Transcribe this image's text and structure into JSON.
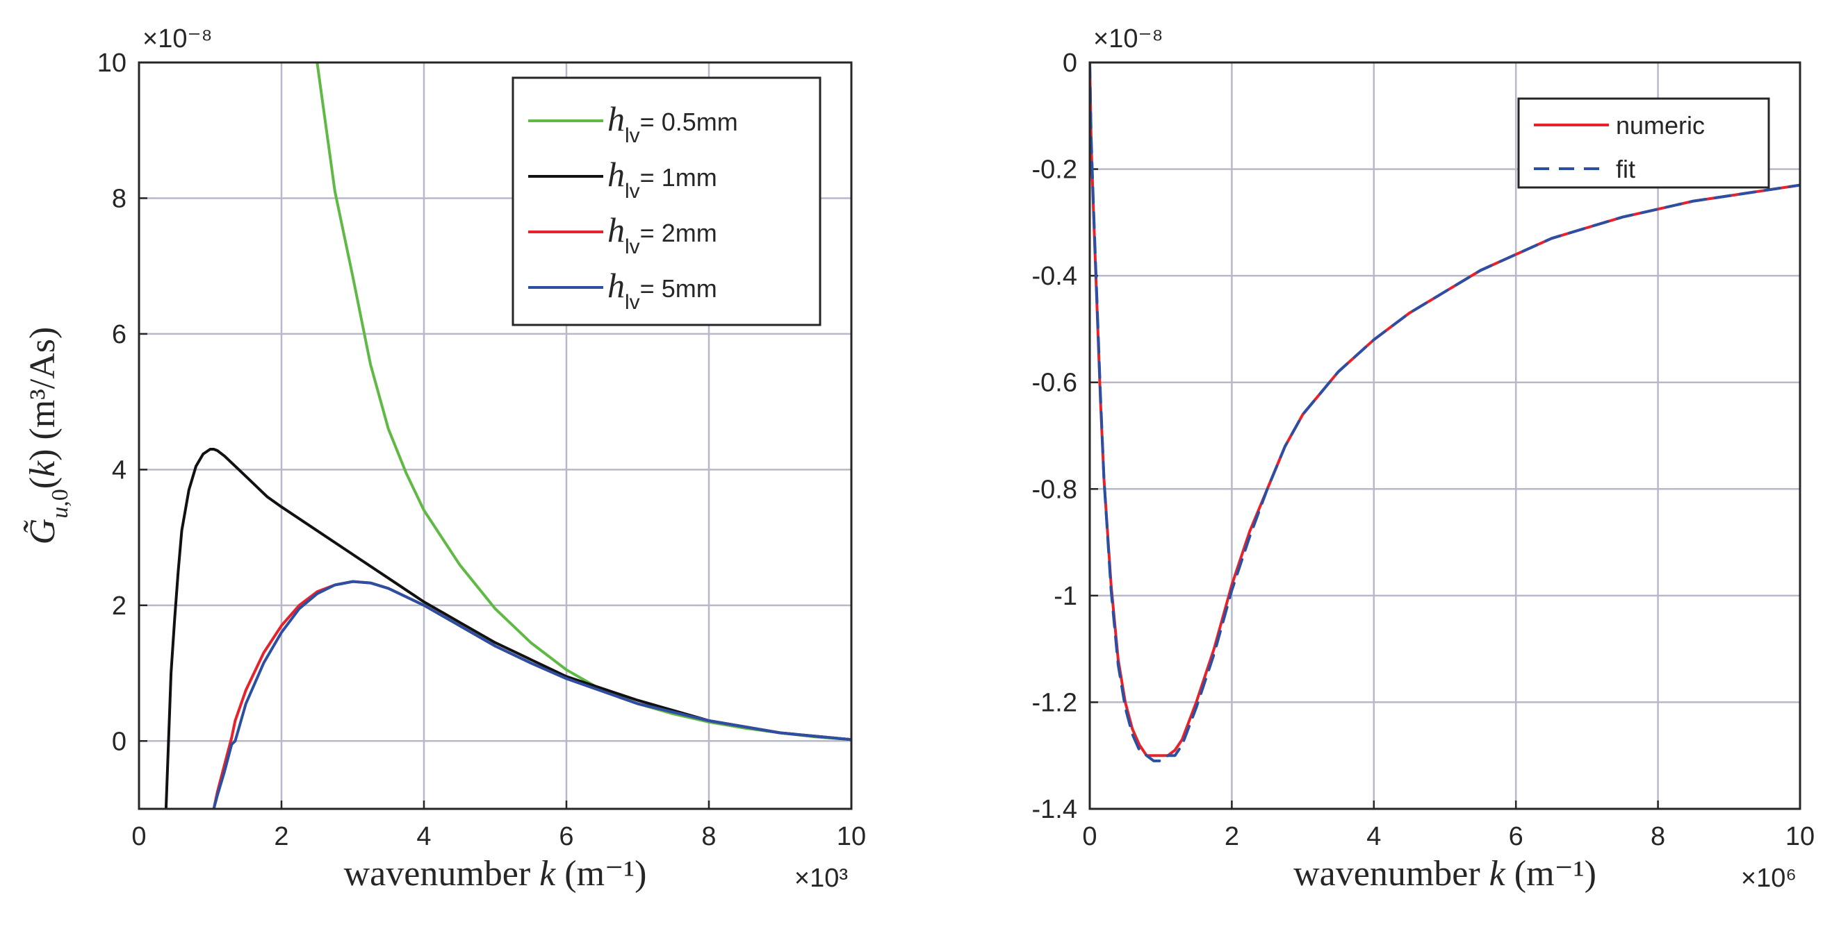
{
  "chart_data": [
    {
      "type": "line",
      "xlabel": "wavenumber k (m⁻¹)",
      "xlabel_prefix": "wavenumber ",
      "xlabel_var": "k",
      "xlabel_unit": "(m⁻¹)",
      "ylabel": "G̃u,0(k) (m³/As)",
      "x_exponent": "×10³",
      "y_exponent": "×10⁻⁸",
      "xlim": [
        0,
        10
      ],
      "ylim": [
        -1,
        10
      ],
      "xticks": [
        "0",
        "2",
        "4",
        "6",
        "8",
        "10"
      ],
      "yticks": [
        "0",
        "2",
        "4",
        "6",
        "8",
        "10"
      ],
      "grid": true,
      "legend_position": "top-right",
      "series": [
        {
          "name": "h_lv = 0.5mm",
          "label_sym": "h",
          "label_sub": "lv",
          "label_rest": "= 0.5mm",
          "color": "#5fb944",
          "dash": "",
          "x": [
            2.5,
            2.75,
            3.0,
            3.25,
            3.5,
            3.75,
            4.0,
            4.5,
            5.0,
            5.5,
            6.0,
            6.5,
            7.0,
            7.5,
            8.0,
            8.5,
            9.0,
            9.5,
            10.0
          ],
          "y": [
            10.0,
            8.1,
            6.85,
            5.55,
            4.6,
            3.95,
            3.4,
            2.6,
            1.95,
            1.45,
            1.05,
            0.75,
            0.55,
            0.4,
            0.28,
            0.19,
            0.12,
            0.06,
            0.02
          ]
        },
        {
          "name": "h_lv = 1mm",
          "label_sym": "h",
          "label_sub": "lv",
          "label_rest": "= 1mm",
          "color": "#111111",
          "dash": "",
          "x": [
            0.38,
            0.45,
            0.5,
            0.55,
            0.6,
            0.7,
            0.8,
            0.9,
            1.0,
            1.05,
            1.1,
            1.2,
            1.3,
            1.5,
            1.8,
            2.0,
            2.5,
            3.0,
            3.5,
            4.0,
            4.5,
            5.0,
            5.5,
            6.0,
            7.0,
            8.0,
            9.0,
            10.0
          ],
          "y": [
            -1.0,
            1.0,
            1.8,
            2.5,
            3.1,
            3.7,
            4.05,
            4.23,
            4.3,
            4.3,
            4.28,
            4.2,
            4.1,
            3.9,
            3.6,
            3.45,
            3.1,
            2.75,
            2.4,
            2.05,
            1.75,
            1.45,
            1.2,
            0.95,
            0.6,
            0.3,
            0.12,
            0.02
          ]
        },
        {
          "name": "h_lv = 2mm",
          "label_sym": "h",
          "label_sub": "lv",
          "label_rest": "= 2mm",
          "color": "#e8222b",
          "dash": "",
          "x": [
            1.05,
            1.1,
            1.2,
            1.3,
            1.35,
            1.5,
            1.75,
            2.0,
            2.25,
            2.5,
            2.75,
            3.0,
            3.25,
            3.5,
            4.0,
            4.5,
            5.0,
            5.5,
            6.0,
            7.0,
            8.0,
            9.0,
            10.0
          ],
          "y": [
            -1.0,
            -0.75,
            -0.35,
            0.05,
            0.3,
            0.75,
            1.3,
            1.7,
            2.0,
            2.2,
            2.3,
            2.35,
            2.33,
            2.25,
            2.0,
            1.7,
            1.4,
            1.15,
            0.92,
            0.55,
            0.3,
            0.12,
            0.02
          ]
        },
        {
          "name": "h_lv = 5mm",
          "label_sym": "h",
          "label_sub": "lv",
          "label_rest": "= 5mm",
          "color": "#2b4fa3",
          "dash": "",
          "x": [
            1.05,
            1.1,
            1.2,
            1.3,
            1.35,
            1.5,
            1.75,
            2.0,
            2.25,
            2.5,
            2.75,
            3.0,
            3.25,
            3.5,
            4.0,
            4.5,
            5.0,
            5.5,
            6.0,
            7.0,
            8.0,
            9.0,
            10.0
          ],
          "y": [
            -1.0,
            -0.8,
            -0.45,
            -0.05,
            0.0,
            0.55,
            1.15,
            1.6,
            1.95,
            2.17,
            2.3,
            2.35,
            2.33,
            2.25,
            2.0,
            1.7,
            1.4,
            1.15,
            0.92,
            0.55,
            0.3,
            0.12,
            0.02
          ]
        }
      ]
    },
    {
      "type": "line",
      "xlabel": "wavenumber k (m⁻¹)",
      "xlabel_prefix": "wavenumber ",
      "xlabel_var": "k",
      "xlabel_unit": "(m⁻¹)",
      "ylabel": "",
      "x_exponent": "×10⁶",
      "y_exponent": "×10⁻⁸",
      "xlim": [
        0,
        10
      ],
      "ylim": [
        -1.4,
        0
      ],
      "xticks": [
        "0",
        "2",
        "4",
        "6",
        "8",
        "10"
      ],
      "yticks": [
        "0",
        "-0.2",
        "-0.4",
        "-0.6",
        "-0.8",
        "-1",
        "-1.2",
        "-1.4"
      ],
      "grid": true,
      "legend_position": "top-right",
      "series": [
        {
          "name": "numeric",
          "color": "#e8222b",
          "dash": "",
          "x": [
            0.0,
            0.02,
            0.05,
            0.1,
            0.15,
            0.2,
            0.3,
            0.4,
            0.5,
            0.6,
            0.7,
            0.8,
            0.9,
            1.0,
            1.1,
            1.2,
            1.3,
            1.5,
            1.75,
            2.0,
            2.25,
            2.5,
            2.75,
            3.0,
            3.5,
            4.0,
            4.5,
            5.0,
            5.5,
            6.0,
            6.5,
            7.0,
            7.5,
            8.0,
            8.5,
            9.0,
            9.5,
            10.0
          ],
          "y": [
            0.0,
            -0.15,
            -0.27,
            -0.45,
            -0.63,
            -0.78,
            -0.98,
            -1.12,
            -1.2,
            -1.25,
            -1.28,
            -1.3,
            -1.3,
            -1.3,
            -1.3,
            -1.29,
            -1.27,
            -1.2,
            -1.1,
            -0.98,
            -0.88,
            -0.8,
            -0.72,
            -0.66,
            -0.58,
            -0.52,
            -0.47,
            -0.43,
            -0.39,
            -0.36,
            -0.33,
            -0.31,
            -0.29,
            -0.275,
            -0.26,
            -0.25,
            -0.24,
            -0.23
          ]
        },
        {
          "name": "fit",
          "color": "#2b4fa3",
          "dash": "22,14",
          "x": [
            0.0,
            0.02,
            0.05,
            0.1,
            0.15,
            0.2,
            0.3,
            0.4,
            0.5,
            0.6,
            0.7,
            0.8,
            0.9,
            1.0,
            1.1,
            1.2,
            1.3,
            1.5,
            1.75,
            2.0,
            2.25,
            2.5,
            2.75,
            3.0,
            3.5,
            4.0,
            4.5,
            5.0,
            5.5,
            6.0,
            6.5,
            7.0,
            7.5,
            8.0,
            8.5,
            9.0,
            9.5,
            10.0
          ],
          "y": [
            0.0,
            -0.14,
            -0.26,
            -0.44,
            -0.62,
            -0.78,
            -0.99,
            -1.13,
            -1.21,
            -1.26,
            -1.29,
            -1.3,
            -1.31,
            -1.31,
            -1.3,
            -1.3,
            -1.28,
            -1.21,
            -1.11,
            -0.99,
            -0.89,
            -0.8,
            -0.72,
            -0.66,
            -0.58,
            -0.52,
            -0.47,
            -0.43,
            -0.39,
            -0.36,
            -0.33,
            -0.31,
            -0.29,
            -0.275,
            -0.26,
            -0.25,
            -0.24,
            -0.23
          ]
        }
      ]
    }
  ]
}
